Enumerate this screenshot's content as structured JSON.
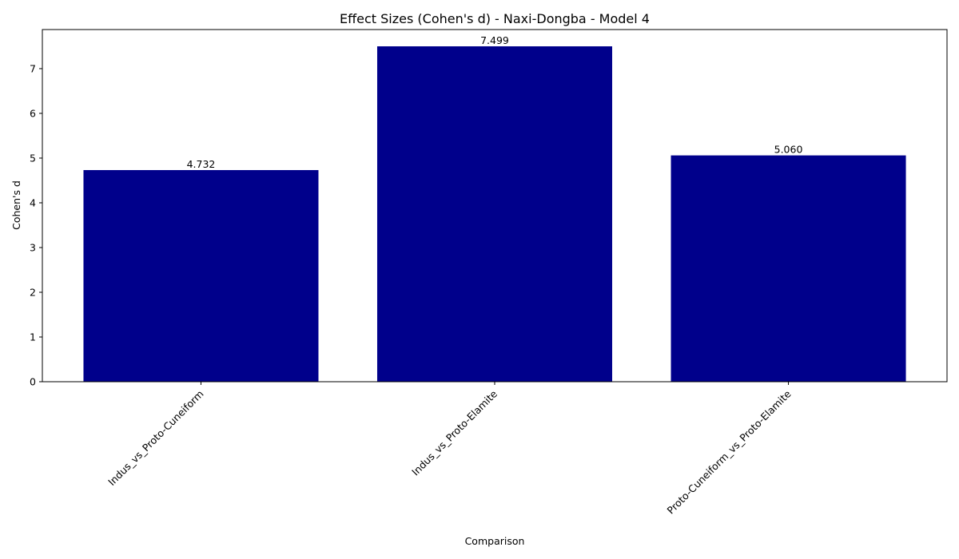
{
  "chart_data": {
    "type": "bar",
    "title": "Effect Sizes (Cohen's d) - Naxi-Dongba - Model 4",
    "xlabel": "Comparison",
    "ylabel": "Cohen's d",
    "categories": [
      "Indus_vs_Proto-Cuneiform",
      "Indus_vs_Proto-Elamite",
      "Proto-Cuneiform_vs_Proto-Elamite"
    ],
    "values": [
      4.732,
      7.499,
      5.06
    ],
    "value_labels": [
      "4.732",
      "7.499",
      "5.060"
    ],
    "ylim": [
      0,
      7.874
    ],
    "yticks": [
      0,
      1,
      2,
      3,
      4,
      5,
      6,
      7
    ],
    "ytick_labels": [
      "0",
      "1",
      "2",
      "3",
      "4",
      "5",
      "6",
      "7"
    ],
    "grid": false,
    "bar_color": "#00008b",
    "axis_color": "#000000"
  }
}
